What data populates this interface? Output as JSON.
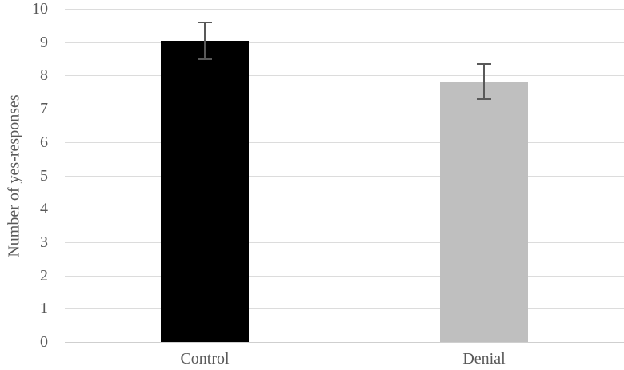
{
  "chart_data": {
    "type": "bar",
    "title": "",
    "xlabel": "",
    "ylabel": "Number of yes-responses",
    "categories": [
      "Control",
      "Denial"
    ],
    "values": [
      9.05,
      7.8
    ],
    "error_bars": [
      {
        "upper": 9.6,
        "lower": 8.5
      },
      {
        "upper": 8.35,
        "lower": 7.3
      }
    ],
    "ylim": [
      0,
      10
    ],
    "yticks": [
      0,
      1,
      2,
      3,
      4,
      5,
      6,
      7,
      8,
      9,
      10
    ],
    "grid": true,
    "legend": null,
    "colors": {
      "bar_fills": [
        "#000000",
        "#bfbfbf"
      ],
      "error_bar": "#595959",
      "gridline": "#dcdcdc",
      "axis_line": "#cfcfcf",
      "text": "#595959",
      "background": "#ffffff"
    }
  }
}
